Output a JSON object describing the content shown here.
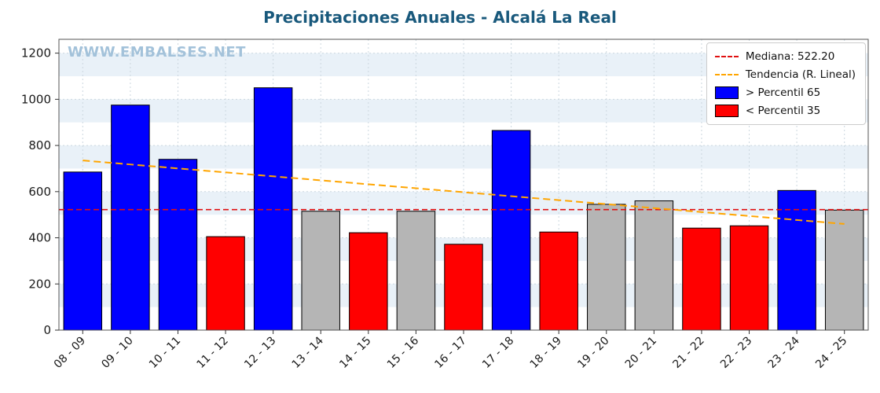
{
  "page": {
    "title": "Precipitaciones Anuales - Alcalá La Real",
    "watermark": "WWW.EMBALSES.NET"
  },
  "legend": {
    "median_label": "Mediana: 522.20",
    "trend_label": "Tendencia (R. Lineal)",
    "above_label": "> Percentil 65",
    "below_label": "< Percentil 35"
  },
  "colors": {
    "title": "#19597c",
    "watermark": "#a3c2da",
    "above": "#0000ff",
    "below": "#ff0000",
    "neutral": "#b5b5b5",
    "median_line": "#e01010",
    "trend_line": "#ffa500",
    "band_stripe": "#e9f1f8",
    "grid": "#ccd7df"
  },
  "chart_data": {
    "type": "bar",
    "title": "Precipitaciones Anuales - Alcalá La Real",
    "xlabel": "",
    "ylabel": "",
    "categories": [
      "08 - 09",
      "09 - 10",
      "10 - 11",
      "11 - 12",
      "12 - 13",
      "13 - 14",
      "14 - 15",
      "15 - 16",
      "16 - 17",
      "17 - 18",
      "18 - 19",
      "19 - 20",
      "20 - 21",
      "21 - 22",
      "22 - 23",
      "23 - 24",
      "24 - 25"
    ],
    "values": [
      685,
      975,
      740,
      405,
      1050,
      515,
      422,
      515,
      372,
      865,
      425,
      545,
      560,
      442,
      452,
      605,
      520
    ],
    "bar_classes": [
      "above",
      "above",
      "above",
      "below",
      "above",
      "neutral",
      "below",
      "neutral",
      "below",
      "above",
      "below",
      "neutral",
      "neutral",
      "below",
      "below",
      "above",
      "neutral"
    ],
    "median": 522.2,
    "trend": {
      "start": 735,
      "end": 460
    },
    "ylim": [
      0,
      1260
    ],
    "yticks": [
      0,
      200,
      400,
      600,
      800,
      1000,
      1200
    ],
    "grid": true,
    "legend_position": "upper right",
    "legend_entries": [
      {
        "label": "Mediana: 522.20",
        "style": "dashed-line",
        "color": "#e01010"
      },
      {
        "label": "Tendencia (R. Lineal)",
        "style": "dashed-line",
        "color": "#ffa500"
      },
      {
        "label": "> Percentil 65",
        "style": "patch",
        "color": "#0000ff"
      },
      {
        "label": "< Percentil 35",
        "style": "patch",
        "color": "#ff0000"
      }
    ]
  }
}
